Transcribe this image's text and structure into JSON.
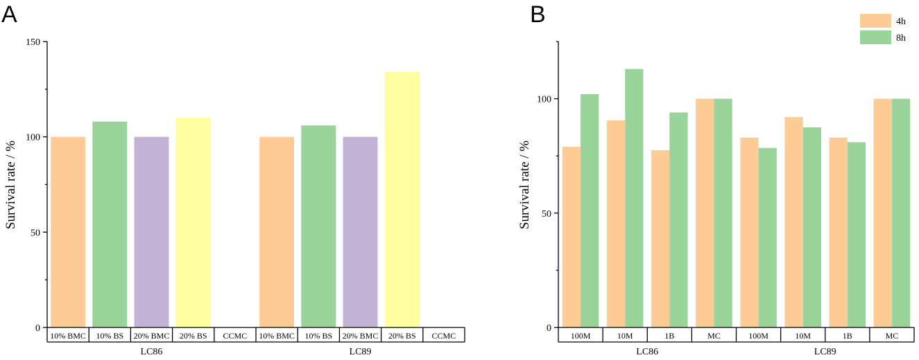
{
  "chart_data": [
    {
      "panel": "A",
      "type": "bar",
      "ylabel": "Survival rate / %",
      "ylim": [
        0,
        150
      ],
      "yticks": [
        0,
        50,
        100,
        150
      ],
      "groups": [
        {
          "name": "LC86",
          "categories": [
            "10% BMC",
            "10% BS",
            "20% BMC",
            "20% BS",
            "CCMC"
          ],
          "values": [
            100,
            108,
            100,
            110,
            0
          ]
        },
        {
          "name": "LC89",
          "categories": [
            "10% BMC",
            "10% BS",
            "20% BMC",
            "20% BS",
            "CCMC"
          ],
          "values": [
            100,
            106,
            100,
            134,
            0
          ]
        }
      ],
      "bar_colors": [
        "#FDCB96",
        "#9AD49B",
        "#C5B3D7",
        "#FEFE9F",
        "#FFFFFF"
      ]
    },
    {
      "panel": "B",
      "type": "bar",
      "ylabel": "Survival rate / %",
      "ylim": [
        0,
        125
      ],
      "yticks": [
        0,
        50,
        100
      ],
      "legend": {
        "position": "top-right",
        "entries": [
          "4h",
          "8h"
        ]
      },
      "groups": [
        {
          "name": "LC86",
          "categories": [
            "100M",
            "10M",
            "1B",
            "MC"
          ],
          "series": [
            {
              "name": "4h",
              "values": [
                79,
                90.5,
                77.5,
                100
              ]
            },
            {
              "name": "8h",
              "values": [
                102,
                113,
                94,
                100
              ]
            }
          ]
        },
        {
          "name": "LC89",
          "categories": [
            "100M",
            "10M",
            "1B",
            "MC"
          ],
          "series": [
            {
              "name": "4h",
              "values": [
                83,
                92,
                83,
                100
              ]
            },
            {
              "name": "8h",
              "values": [
                78.5,
                87.5,
                81,
                100
              ]
            }
          ]
        }
      ],
      "series_colors": [
        "#FDCB96",
        "#9AD49B"
      ]
    }
  ]
}
